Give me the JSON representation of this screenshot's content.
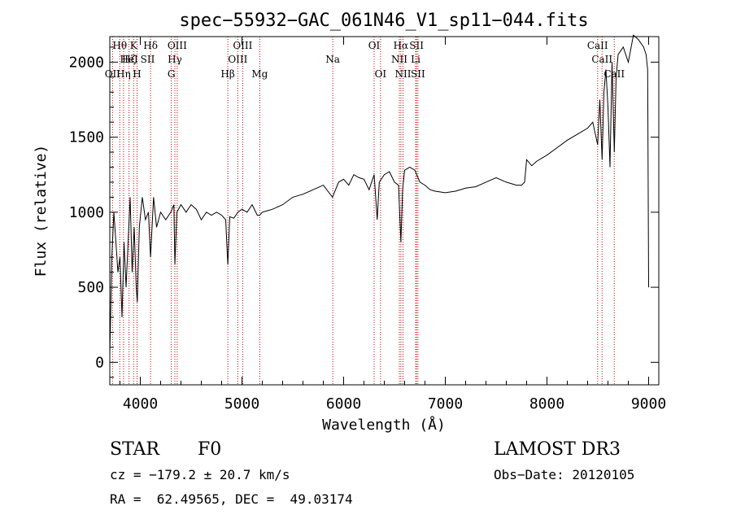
{
  "chart_data": {
    "type": "line",
    "title": "spec−55932−GAC_061N46_V1_sp11−044.fits",
    "xlabel": "Wavelength (Å)",
    "ylabel": "Flux (relative)",
    "xlim": [
      3700,
      9100
    ],
    "ylim": [
      -150,
      2170
    ],
    "x_ticks": [
      4000,
      5000,
      6000,
      7000,
      8000,
      9000
    ],
    "y_ticks": [
      0,
      500,
      1000,
      1500,
      2000
    ],
    "grid": false,
    "series": [
      {
        "x": [
          3700,
          3720,
          3740,
          3760,
          3780,
          3800,
          3820,
          3840,
          3860,
          3880,
          3900,
          3920,
          3940,
          3960,
          3970,
          3990,
          4020,
          4050,
          4080,
          4101,
          4130,
          4160,
          4200,
          4250,
          4300,
          4330,
          4340,
          4360,
          4400,
          4450,
          4500,
          4550,
          4600,
          4650,
          4700,
          4750,
          4800,
          4840,
          4861,
          4880,
          4920,
          4960,
          5000,
          5050,
          5100,
          5150,
          5175,
          5200,
          5250,
          5300,
          5400,
          5500,
          5600,
          5700,
          5800,
          5890,
          5950,
          6000,
          6050,
          6100,
          6150,
          6200,
          6250,
          6300,
          6330,
          6350,
          6400,
          6450,
          6500,
          6540,
          6563,
          6580,
          6600,
          6650,
          6700,
          6750,
          6800,
          6850,
          6900,
          7000,
          7100,
          7200,
          7300,
          7400,
          7500,
          7600,
          7700,
          7750,
          7780,
          7800,
          7850,
          7900,
          8000,
          8100,
          8200,
          8300,
          8400,
          8450,
          8498,
          8520,
          8542,
          8560,
          8580,
          8600,
          8620,
          8640,
          8662,
          8680,
          8700,
          8750,
          8800,
          8850,
          8900,
          8950,
          8975,
          8990,
          9000
        ],
        "y": [
          50,
          700,
          1000,
          800,
          600,
          700,
          300,
          800,
          500,
          800,
          1100,
          600,
          900,
          500,
          400,
          900,
          1100,
          950,
          1000,
          700,
          1100,
          900,
          1000,
          950,
          1000,
          1050,
          650,
          1000,
          1050,
          1000,
          1050,
          1020,
          950,
          1000,
          980,
          1000,
          980,
          950,
          650,
          970,
          960,
          1000,
          1020,
          1000,
          1050,
          980,
          980,
          1000,
          1010,
          1020,
          1050,
          1100,
          1120,
          1150,
          1180,
          1100,
          1200,
          1220,
          1180,
          1250,
          1230,
          1220,
          1150,
          1250,
          950,
          1200,
          1250,
          1270,
          1200,
          1180,
          800,
          1150,
          1280,
          1300,
          1280,
          1200,
          1180,
          1150,
          1140,
          1130,
          1140,
          1160,
          1170,
          1200,
          1230,
          1200,
          1180,
          1180,
          1200,
          1350,
          1310,
          1340,
          1380,
          1430,
          1480,
          1520,
          1560,
          1600,
          1450,
          1750,
          1350,
          1800,
          1950,
          1700,
          1300,
          2000,
          1400,
          1900,
          2050,
          2100,
          2000,
          2180,
          2150,
          2100,
          2050,
          1950,
          500
        ]
      }
    ],
    "line_labels": [
      {
        "label": "Hθ",
        "wl": 3798,
        "row": 0
      },
      {
        "label": "K",
        "wl": 3934,
        "row": 0
      },
      {
        "label": "Hδ",
        "wl": 4101,
        "row": 0
      },
      {
        "label": "OIII",
        "wl": 4363,
        "row": 0
      },
      {
        "label": "OIII",
        "wl": 5007,
        "row": 0
      },
      {
        "label": "OI",
        "wl": 6300,
        "row": 0
      },
      {
        "label": "Hα",
        "wl": 6563,
        "row": 0
      },
      {
        "label": "SII",
        "wl": 6717,
        "row": 0
      },
      {
        "label": "CaII",
        "wl": 8498,
        "row": 0
      },
      {
        "label": "Hζ",
        "wl": 3889,
        "row": 1
      },
      {
        "label": "HeI",
        "wl": 3889,
        "row": 1
      },
      {
        "label": "SII",
        "wl": 4072,
        "row": 1
      },
      {
        "label": "Hγ",
        "wl": 4340,
        "row": 1
      },
      {
        "label": "OIII",
        "wl": 4959,
        "row": 1
      },
      {
        "label": "Na",
        "wl": 5893,
        "row": 1
      },
      {
        "label": "NII",
        "wl": 6548,
        "row": 1
      },
      {
        "label": "Li",
        "wl": 6708,
        "row": 1
      },
      {
        "label": "CaII",
        "wl": 8542,
        "row": 1
      },
      {
        "label": "OII",
        "wl": 3727,
        "row": 2
      },
      {
        "label": "Hη",
        "wl": 3835,
        "row": 2
      },
      {
        "label": "H",
        "wl": 3968,
        "row": 2
      },
      {
        "label": "G",
        "wl": 4305,
        "row": 2
      },
      {
        "label": "Hβ",
        "wl": 4861,
        "row": 2
      },
      {
        "label": "Mg",
        "wl": 5175,
        "row": 2
      },
      {
        "label": "OI",
        "wl": 6363,
        "row": 2
      },
      {
        "label": "NII",
        "wl": 6584,
        "row": 2
      },
      {
        "label": "SII",
        "wl": 6731,
        "row": 2
      },
      {
        "label": "CaII",
        "wl": 8662,
        "row": 2
      }
    ],
    "marker_lines": [
      3727,
      3798,
      3835,
      3889,
      3934,
      3968,
      4101,
      4305,
      4340,
      4363,
      4861,
      4959,
      5007,
      5175,
      5893,
      6300,
      6363,
      6548,
      6563,
      6584,
      6708,
      6717,
      6731,
      8498,
      8542,
      8662
    ],
    "colors": {
      "spectrum": "#000000",
      "marker": "#cc0000"
    }
  },
  "footer": {
    "obj_class": "STAR",
    "subclass": "F0",
    "survey": "LAMOST DR3",
    "cz": "cz = −179.2 ± 20.7 km/s",
    "obs_date": "Obs−Date: 20120105",
    "coords": "RA =  62.49565, DEC =  49.03174"
  }
}
